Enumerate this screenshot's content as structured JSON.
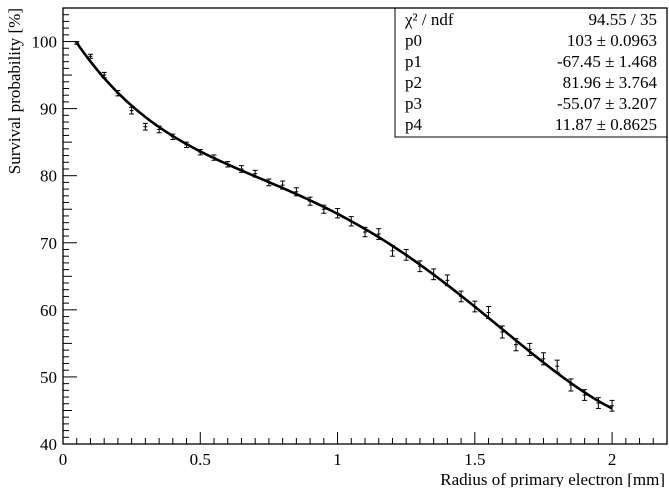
{
  "chart_data": {
    "type": "scatter",
    "xlabel": "Radius of primary electron [mm]",
    "ylabel": "Survival probability [%]",
    "xlim": [
      0,
      2.2
    ],
    "ylim": [
      40,
      105
    ],
    "x_ticks": [
      "0",
      "0.5",
      "1",
      "1.5",
      "2"
    ],
    "y_ticks": [
      "40",
      "50",
      "60",
      "70",
      "80",
      "90",
      "100"
    ],
    "grid": false,
    "stats_box": [
      {
        "label": "χ² / ndf",
        "value": "94.55 / 35"
      },
      {
        "label": "p0",
        "value": "103 ± 0.0963"
      },
      {
        "label": "p1",
        "value": "-67.45 ± 1.468"
      },
      {
        "label": "p2",
        "value": "81.96 ± 3.764"
      },
      {
        "label": "p3",
        "value": "-55.07 ± 3.207"
      },
      {
        "label": "p4",
        "value": "11.87 ± 0.8625"
      }
    ],
    "fit": {
      "type": "pol4",
      "range": [
        0.05,
        2.0
      ],
      "params": [
        103,
        -67.45,
        81.96,
        -55.07,
        11.87
      ]
    },
    "series": [
      {
        "points": [
          {
            "x": 0.05,
            "y": 99.8,
            "err": 0.2
          },
          {
            "x": 0.1,
            "y": 97.8,
            "err": 0.3
          },
          {
            "x": 0.15,
            "y": 95.0,
            "err": 0.4
          },
          {
            "x": 0.2,
            "y": 92.3,
            "err": 0.4
          },
          {
            "x": 0.25,
            "y": 89.7,
            "err": 0.5
          },
          {
            "x": 0.3,
            "y": 87.3,
            "err": 0.5
          },
          {
            "x": 0.35,
            "y": 86.9,
            "err": 0.5
          },
          {
            "x": 0.4,
            "y": 85.8,
            "err": 0.4
          },
          {
            "x": 0.45,
            "y": 84.6,
            "err": 0.4
          },
          {
            "x": 0.5,
            "y": 83.5,
            "err": 0.4
          },
          {
            "x": 0.55,
            "y": 82.7,
            "err": 0.4
          },
          {
            "x": 0.6,
            "y": 81.7,
            "err": 0.4
          },
          {
            "x": 0.65,
            "y": 81.0,
            "err": 0.5
          },
          {
            "x": 0.7,
            "y": 80.3,
            "err": 0.5
          },
          {
            "x": 0.75,
            "y": 79.0,
            "err": 0.5
          },
          {
            "x": 0.8,
            "y": 78.6,
            "err": 0.6
          },
          {
            "x": 0.85,
            "y": 77.6,
            "err": 0.6
          },
          {
            "x": 0.9,
            "y": 76.2,
            "err": 0.6
          },
          {
            "x": 0.95,
            "y": 75.0,
            "err": 0.6
          },
          {
            "x": 1.0,
            "y": 74.4,
            "err": 0.7
          },
          {
            "x": 1.05,
            "y": 73.2,
            "err": 0.7
          },
          {
            "x": 1.1,
            "y": 71.6,
            "err": 0.7
          },
          {
            "x": 1.15,
            "y": 71.3,
            "err": 0.8
          },
          {
            "x": 1.2,
            "y": 68.8,
            "err": 0.8
          },
          {
            "x": 1.25,
            "y": 68.2,
            "err": 0.8
          },
          {
            "x": 1.3,
            "y": 66.5,
            "err": 0.8
          },
          {
            "x": 1.35,
            "y": 65.3,
            "err": 0.8
          },
          {
            "x": 1.4,
            "y": 64.4,
            "err": 0.8
          },
          {
            "x": 1.45,
            "y": 62.0,
            "err": 0.8
          },
          {
            "x": 1.5,
            "y": 60.5,
            "err": 0.8
          },
          {
            "x": 1.55,
            "y": 59.6,
            "err": 0.9
          },
          {
            "x": 1.6,
            "y": 56.7,
            "err": 0.9
          },
          {
            "x": 1.65,
            "y": 54.8,
            "err": 0.9
          },
          {
            "x": 1.7,
            "y": 54.1,
            "err": 0.9
          },
          {
            "x": 1.75,
            "y": 52.7,
            "err": 0.9
          },
          {
            "x": 1.8,
            "y": 51.6,
            "err": 0.9
          },
          {
            "x": 1.85,
            "y": 48.8,
            "err": 0.9
          },
          {
            "x": 1.9,
            "y": 47.3,
            "err": 0.8
          },
          {
            "x": 1.95,
            "y": 46.1,
            "err": 0.8
          },
          {
            "x": 2.0,
            "y": 45.7,
            "err": 0.8
          }
        ]
      }
    ]
  }
}
